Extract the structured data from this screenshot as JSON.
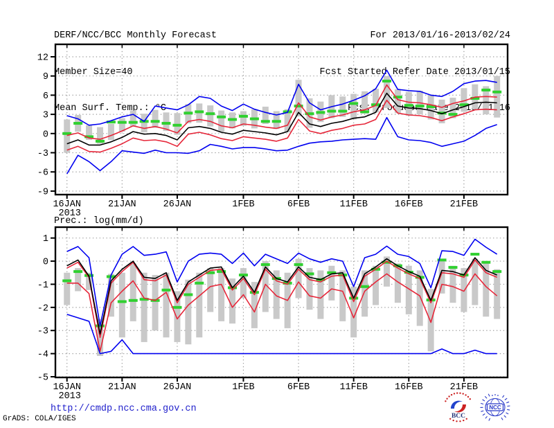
{
  "header": {
    "title": "DERF/NCC/BCC Monthly Forecast",
    "member_size": "Member Size=40",
    "panel1_label": "Mean Surf. Temp.: °C",
    "for_range": "For 2013/01/16-2013/02/24",
    "refer_date": "Fcst Started Refer Date 2013/01/15",
    "produced_date": "Fcst Produced Date 2013/01/16"
  },
  "footer": {
    "url": "http://cmdp.ncc.cma.gov.cn",
    "credit": "GrADS: COLA/IGES",
    "logos": {
      "bcc_label": "BCC",
      "ncc_label": "NCC"
    }
  },
  "colors": {
    "blue": "#0000f0",
    "red": "#e62639",
    "black": "#000000",
    "green": "#30d030",
    "bar_gray": "#c9c9c9",
    "grid_gray": "#999999",
    "frame": "#000000",
    "url_blue": "#2222cc",
    "bcc_red": "#cc2222",
    "bcc_blue": "#2244cc",
    "ncc_blue": "#2838c8"
  },
  "chart_data": [
    {
      "type": "line",
      "label": "Mean Surf. Temp.: °C",
      "draw_title": false,
      "ylim": [
        -9.55,
        13.95
      ],
      "y_ticks": [
        12,
        9,
        6,
        3,
        0,
        -3,
        -6,
        -9
      ],
      "x_ticks": [
        {
          "label": "16JAN",
          "day": 0
        },
        {
          "label": "21JAN",
          "day": 5
        },
        {
          "label": "26JAN",
          "day": 10
        },
        {
          "label": "1FEB",
          "day": 16
        },
        {
          "label": "6FEB",
          "day": 21
        },
        {
          "label": "11FEB",
          "day": 26
        },
        {
          "label": "16FEB",
          "day": 31
        },
        {
          "label": "21FEB",
          "day": 36
        }
      ],
      "x_year": {
        "label": "2013",
        "day": 0
      },
      "n_days": 40,
      "bar_top": [
        2.2,
        2.9,
        1.3,
        1.0,
        1.5,
        2.4,
        3.6,
        3.1,
        3.7,
        3.3,
        3.2,
        4.6,
        4.7,
        4.4,
        3.6,
        3.3,
        3.5,
        3.8,
        4.2,
        3.5,
        3.8,
        8.4,
        5.5,
        5.0,
        6.0,
        5.8,
        6.2,
        6.6,
        7.0,
        9.0,
        6.9,
        6.5,
        6.7,
        6.1,
        5.3,
        5.6,
        7.1,
        7.7,
        7.4,
        9.0
      ],
      "bar_bottom": [
        -3.0,
        0.3,
        -1.0,
        -1.6,
        -1.0,
        0.3,
        1.1,
        0.2,
        0.9,
        0.4,
        -0.2,
        1.6,
        1.7,
        1.1,
        0.3,
        0.8,
        1.2,
        0.8,
        1.5,
        0.7,
        0.2,
        2.7,
        0.9,
        1.8,
        2.4,
        2.6,
        2.2,
        3.1,
        3.3,
        4.0,
        3.2,
        2.8,
        3.0,
        2.2,
        1.6,
        2.4,
        3.4,
        3.8,
        3.0,
        2.5
      ],
      "green_dash": [
        0.0,
        1.6,
        -0.5,
        -1.2,
        1.8,
        1.75,
        1.75,
        1.9,
        1.9,
        1.6,
        1.3,
        3.2,
        3.4,
        3.1,
        2.6,
        2.2,
        2.7,
        2.3,
        1.9,
        1.9,
        3.4,
        4.3,
        3.1,
        3.3,
        3.5,
        3.5,
        4.7,
        3.4,
        4.5,
        8.2,
        5.7,
        4.4,
        4.3,
        4.2,
        3.2,
        3.0,
        4.5,
        5.5,
        6.8,
        6.5
      ],
      "series": [
        {
          "name": "ensemble-max",
          "color": "blue",
          "values": [
            2.8,
            2.3,
            1.3,
            1.5,
            2.0,
            2.6,
            3.0,
            1.9,
            4.3,
            4.0,
            3.7,
            4.5,
            5.8,
            5.5,
            4.3,
            3.6,
            4.6,
            3.8,
            3.3,
            2.9,
            3.3,
            7.7,
            4.8,
            3.7,
            4.2,
            4.6,
            5.2,
            5.9,
            7.0,
            9.9,
            6.9,
            6.7,
            6.6,
            6.0,
            5.8,
            6.6,
            7.8,
            8.2,
            8.3,
            8.0
          ]
        },
        {
          "name": "upper-quartile",
          "color": "red",
          "values": [
            -0.3,
            0.1,
            -0.7,
            -0.9,
            -0.3,
            0.4,
            1.2,
            0.8,
            1.1,
            0.7,
            0.1,
            1.9,
            2.2,
            1.9,
            1.2,
            0.9,
            1.5,
            1.3,
            1.0,
            0.8,
            1.3,
            4.8,
            2.6,
            2.1,
            2.6,
            2.9,
            3.4,
            3.7,
            4.4,
            7.6,
            5.3,
            4.9,
            4.8,
            4.5,
            4.1,
            4.7,
            5.1,
            5.7,
            5.8,
            5.7
          ]
        },
        {
          "name": "ensemble-mean",
          "color": "black",
          "values": [
            -1.6,
            -1.0,
            -1.8,
            -1.8,
            -1.3,
            -0.6,
            0.3,
            -0.1,
            0.0,
            -0.3,
            -1.0,
            0.9,
            1.1,
            0.8,
            0.2,
            -0.1,
            0.5,
            0.3,
            0.1,
            -0.2,
            0.3,
            3.3,
            1.5,
            1.1,
            1.6,
            1.9,
            2.4,
            2.6,
            3.3,
            6.3,
            4.3,
            4.0,
            3.9,
            3.6,
            3.1,
            3.7,
            4.2,
            4.8,
            4.9,
            4.8
          ]
        },
        {
          "name": "lower-quartile",
          "color": "red",
          "values": [
            -2.6,
            -2.0,
            -2.8,
            -2.9,
            -2.3,
            -1.6,
            -0.7,
            -1.1,
            -1.0,
            -1.3,
            -2.0,
            -0.1,
            0.2,
            -0.2,
            -0.8,
            -1.1,
            -0.5,
            -0.7,
            -0.9,
            -1.2,
            -0.7,
            2.2,
            0.4,
            0.0,
            0.5,
            0.8,
            1.3,
            1.5,
            2.2,
            5.2,
            3.2,
            2.9,
            2.8,
            2.5,
            2.0,
            2.6,
            3.1,
            3.7,
            3.8,
            3.7
          ]
        },
        {
          "name": "ensemble-min",
          "color": "blue",
          "values": [
            -6.3,
            -3.4,
            -4.4,
            -5.8,
            -4.4,
            -2.7,
            -2.9,
            -3.1,
            -2.6,
            -3.0,
            -3.0,
            -3.1,
            -2.7,
            -1.7,
            -2.0,
            -2.4,
            -2.2,
            -2.2,
            -2.4,
            -2.7,
            -2.6,
            -2.0,
            -1.5,
            -1.3,
            -1.2,
            -1.0,
            -0.9,
            -0.8,
            -0.9,
            2.5,
            -0.5,
            -1.0,
            -1.1,
            -1.4,
            -2.0,
            -1.6,
            -1.2,
            -0.3,
            0.8,
            1.4
          ]
        }
      ]
    },
    {
      "type": "line",
      "label": "Prec.: log(mm/d)",
      "draw_title": true,
      "ylim": [
        -5.03,
        1.47
      ],
      "y_ticks": [
        1,
        0,
        -1,
        -2,
        -3,
        -4,
        -5
      ],
      "x_ticks": [
        {
          "label": "16JAN",
          "day": 0
        },
        {
          "label": "21JAN",
          "day": 5
        },
        {
          "label": "26JAN",
          "day": 10
        },
        {
          "label": "1FEB",
          "day": 16
        },
        {
          "label": "6FEB",
          "day": 21
        },
        {
          "label": "11FEB",
          "day": 26
        },
        {
          "label": "16FEB",
          "day": 31
        },
        {
          "label": "21FEB",
          "day": 36
        }
      ],
      "x_year": {
        "label": "2013",
        "day": 0
      },
      "n_days": 40,
      "bar_top": [
        -0.5,
        -0.3,
        -0.5,
        -2.5,
        -0.55,
        -0.5,
        -0.1,
        -0.5,
        -0.6,
        -0.5,
        -1.3,
        -0.8,
        -0.5,
        -0.3,
        -0.3,
        -0.75,
        -0.3,
        -0.9,
        0.0,
        -0.4,
        -0.5,
        0.1,
        -0.3,
        -0.4,
        -0.2,
        -0.4,
        -1.1,
        -0.4,
        -0.2,
        0.2,
        -0.1,
        -0.2,
        -0.4,
        -1.2,
        0.1,
        -0.2,
        -0.3,
        0.1,
        -0.1,
        -0.35
      ],
      "bar_bottom": [
        -1.9,
        -1.3,
        -1.25,
        -4.1,
        -2.4,
        -3.3,
        -2.6,
        -3.5,
        -3.0,
        -3.3,
        -3.5,
        -3.6,
        -3.3,
        -2.2,
        -2.6,
        -2.7,
        -1.6,
        -2.9,
        -2.2,
        -2.5,
        -2.9,
        -1.6,
        -2.1,
        -2.5,
        -1.7,
        -2.6,
        -3.3,
        -2.4,
        -1.9,
        -1.1,
        -1.8,
        -2.3,
        -2.8,
        -3.9,
        -1.4,
        -1.8,
        -2.2,
        -1.9,
        -2.4,
        -2.5
      ],
      "green_dash": [
        -0.85,
        -0.45,
        -0.62,
        -2.8,
        -0.67,
        -1.75,
        -1.7,
        -1.65,
        -1.7,
        -1.25,
        -2.0,
        -1.45,
        -0.95,
        -0.5,
        -0.45,
        -1.15,
        -0.6,
        -1.35,
        -0.15,
        -0.75,
        -0.95,
        -0.15,
        -0.55,
        -0.8,
        -0.5,
        -0.6,
        -1.6,
        -1.1,
        -0.35,
        -0.05,
        -0.2,
        -0.48,
        -0.7,
        -1.68,
        0.05,
        -0.27,
        -0.6,
        0.3,
        -0.05,
        -0.45
      ],
      "series": [
        {
          "name": "ensemble-max",
          "color": "blue",
          "values": [
            0.42,
            0.63,
            0.15,
            -2.8,
            -0.6,
            0.3,
            0.63,
            0.25,
            0.3,
            0.4,
            -0.9,
            0.0,
            0.3,
            0.35,
            0.3,
            -0.1,
            0.35,
            -0.2,
            0.3,
            0.1,
            -0.1,
            0.35,
            0.1,
            -0.05,
            0.1,
            0.0,
            -1.1,
            0.15,
            0.3,
            0.65,
            0.3,
            0.2,
            -0.1,
            -1.15,
            0.45,
            0.42,
            0.25,
            0.95,
            0.6,
            0.3
          ]
        },
        {
          "name": "upper-quartile",
          "color": "red",
          "values": [
            -0.3,
            -0.05,
            -0.7,
            -3.3,
            -0.95,
            -0.45,
            -0.05,
            -0.8,
            -0.85,
            -0.6,
            -1.8,
            -1.0,
            -0.7,
            -0.4,
            -0.35,
            -1.25,
            -0.75,
            -1.45,
            -0.35,
            -0.85,
            -1.0,
            -0.35,
            -0.8,
            -0.9,
            -0.65,
            -0.6,
            -1.75,
            -0.65,
            -0.35,
            0.0,
            -0.3,
            -0.55,
            -0.75,
            -1.8,
            -0.5,
            -0.55,
            -0.7,
            0.05,
            -0.5,
            -0.7
          ]
        },
        {
          "name": "ensemble-mean",
          "color": "black",
          "values": [
            -0.2,
            0.05,
            -0.65,
            -3.15,
            -0.85,
            -0.35,
            0.0,
            -0.7,
            -0.75,
            -0.5,
            -1.7,
            -0.9,
            -0.6,
            -0.3,
            -0.25,
            -1.15,
            -0.65,
            -1.35,
            -0.25,
            -0.75,
            -0.9,
            -0.25,
            -0.7,
            -0.8,
            -0.55,
            -0.5,
            -1.6,
            -0.55,
            -0.25,
            0.1,
            -0.2,
            -0.45,
            -0.65,
            -1.7,
            -0.4,
            -0.45,
            -0.6,
            0.15,
            -0.4,
            -0.6
          ]
        },
        {
          "name": "lower-quartile",
          "color": "red",
          "values": [
            -0.95,
            -0.95,
            -1.4,
            -3.9,
            -1.8,
            -1.3,
            -0.85,
            -1.6,
            -1.7,
            -1.35,
            -2.5,
            -1.9,
            -1.5,
            -1.1,
            -1.0,
            -2.0,
            -1.45,
            -2.2,
            -1.0,
            -1.5,
            -1.7,
            -0.9,
            -1.5,
            -1.6,
            -1.2,
            -1.3,
            -2.45,
            -1.3,
            -0.9,
            -0.55,
            -0.9,
            -1.2,
            -1.5,
            -2.65,
            -1.0,
            -1.1,
            -1.3,
            -0.55,
            -1.1,
            -1.5
          ]
        },
        {
          "name": "ensemble-min",
          "color": "blue",
          "values": [
            -2.3,
            -2.45,
            -2.6,
            -4.0,
            -3.9,
            -3.4,
            -4.0,
            -4.0,
            -4.0,
            -4.0,
            -4.0,
            -4.0,
            -4.0,
            -4.0,
            -4.0,
            -4.0,
            -4.0,
            -4.0,
            -4.0,
            -4.0,
            -4.0,
            -4.0,
            -4.0,
            -4.0,
            -4.0,
            -4.0,
            -4.0,
            -4.0,
            -4.0,
            -4.0,
            -4.0,
            -4.0,
            -4.0,
            -4.0,
            -3.8,
            -4.0,
            -4.0,
            -3.85,
            -4.0,
            -4.0
          ]
        }
      ]
    }
  ]
}
